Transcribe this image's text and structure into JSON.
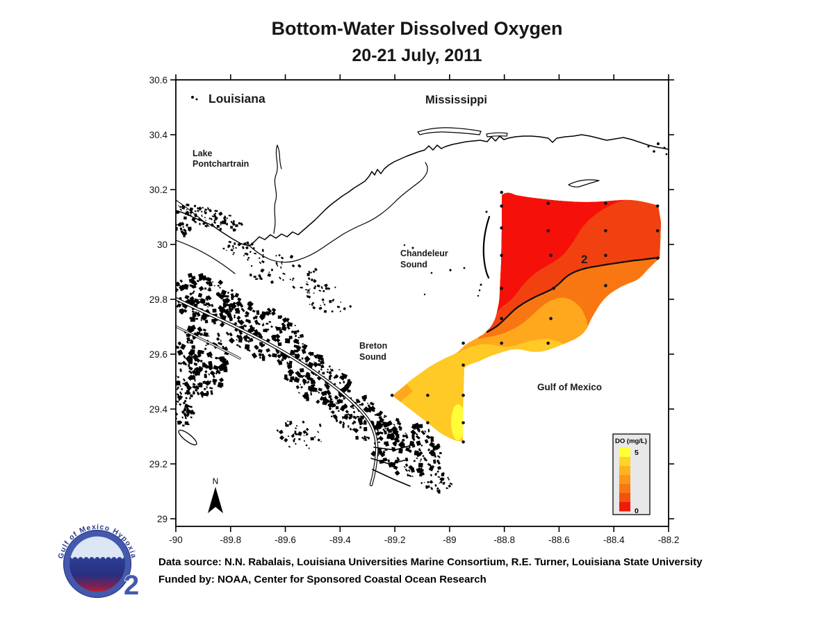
{
  "title": {
    "line1": "Bottom-Water Dissolved Oxygen",
    "line2": "20-21 July, 2011"
  },
  "map_labels": {
    "louisiana": "Louisiana",
    "mississippi": "Mississippi",
    "lake_pontchartrain_1": "Lake",
    "lake_pontchartrain_2": "Pontchartrain",
    "chandeleur_sound_1": "Chandeleur",
    "chandeleur_sound_2": "Sound",
    "breton_sound_1": "Breton",
    "breton_sound_2": "Sound",
    "gulf_of_mexico": "Gulf of Mexico",
    "contour_label": "2",
    "north_arrow_label": "N"
  },
  "legend": {
    "title": "DO (mg/L)",
    "max_label": "5",
    "min_label": "0"
  },
  "credits": {
    "line1": "Data source: N.N. Rabalais, Louisiana Universities Marine Consortium, R.E. Turner, Louisiana State University",
    "line2": "Funded by: NOAA, Center for Sponsored Coastal Ocean Research"
  },
  "logo": {
    "arc_text": "Gulf of Mexico Hypoxia",
    "subscript": "2"
  },
  "chart_data": {
    "type": "heatmap",
    "subtype": "filled-contour-map",
    "title": "Bottom-Water Dissolved Oxygen, 20-21 July, 2011",
    "variable": "Bottom-water dissolved oxygen",
    "units": "mg/L",
    "xlabel": "",
    "ylabel": "",
    "grid": false,
    "xlim": [
      -90,
      -88.2
    ],
    "ylim": [
      28.97,
      30.6
    ],
    "x_tick_values": [
      -90,
      -89.8,
      -89.6,
      -89.4,
      -89.2,
      -89,
      -88.8,
      -88.6,
      -88.4,
      -88.2
    ],
    "x_tick_labels": [
      "-90",
      "-89.8",
      "-89.6",
      "-89.4",
      "-89.2",
      "-89",
      "-88.8",
      "-88.6",
      "-88.4",
      "-88.2"
    ],
    "y_tick_values": [
      30.6,
      30.4,
      30.2,
      30,
      29.8,
      29.6,
      29.4,
      29.2,
      29
    ],
    "y_tick_labels": [
      "30.6",
      "30.4",
      "30.2",
      "30",
      "29.8",
      "29.6",
      "29.4",
      "29.2",
      "29"
    ],
    "do_scale": {
      "min": 0,
      "max": 5
    },
    "contour_line_value": 2,
    "legend_position": "lower right",
    "legend_colors_top_to_bottom": [
      "#FFFF33",
      "#FFD42A",
      "#FFB41F",
      "#FC9618",
      "#F87712",
      "#F4500E",
      "#EF1A0C"
    ],
    "band_colors": {
      "red": "#F6100A",
      "red_orange": "#F14110",
      "orange": "#F97712",
      "amber": "#FFA81E",
      "gold": "#FFC926",
      "bright_yellow": "#FFFC38"
    },
    "stations_lon_lat": [
      [
        -88.81,
        30.19
      ],
      [
        -88.81,
        30.14
      ],
      [
        -88.64,
        30.15
      ],
      [
        -88.43,
        30.15
      ],
      [
        -88.24,
        30.14
      ],
      [
        -88.81,
        30.06
      ],
      [
        -88.64,
        30.05
      ],
      [
        -88.43,
        30.05
      ],
      [
        -88.24,
        30.05
      ],
      [
        -88.81,
        29.96
      ],
      [
        -88.63,
        29.96
      ],
      [
        -88.43,
        29.96
      ],
      [
        -88.24,
        29.95
      ],
      [
        -88.81,
        29.84
      ],
      [
        -88.62,
        29.84
      ],
      [
        -88.43,
        29.85
      ],
      [
        -88.81,
        29.73
      ],
      [
        -88.63,
        29.73
      ],
      [
        -88.95,
        29.64
      ],
      [
        -88.81,
        29.64
      ],
      [
        -88.64,
        29.64
      ],
      [
        -88.95,
        29.56
      ],
      [
        -89.21,
        29.45
      ],
      [
        -89.08,
        29.45
      ],
      [
        -88.95,
        29.45
      ],
      [
        -89.08,
        29.35
      ],
      [
        -88.95,
        29.35
      ],
      [
        -88.95,
        29.28
      ]
    ]
  }
}
